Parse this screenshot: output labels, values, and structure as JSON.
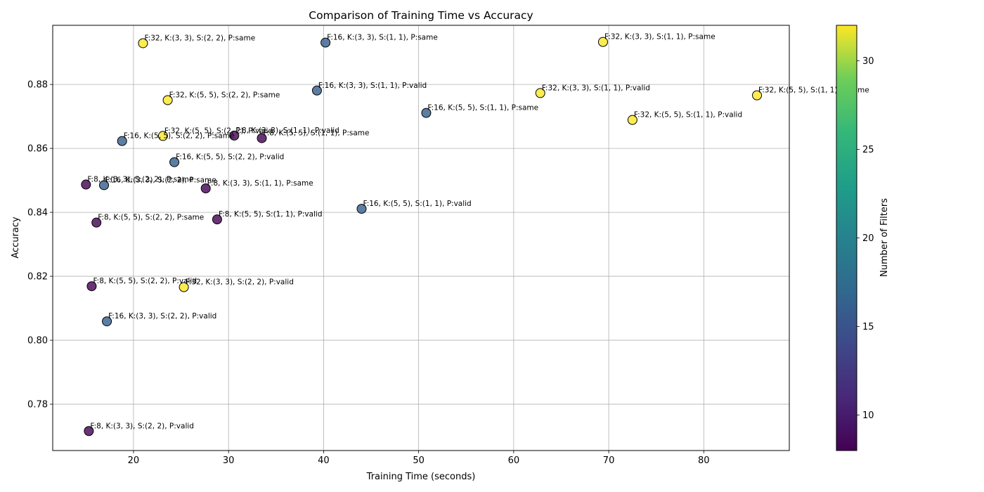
{
  "chart_data": {
    "type": "scatter",
    "title": "Comparison of Training Time vs Accuracy",
    "xlabel": "Training Time (seconds)",
    "ylabel": "Accuracy",
    "xlim": [
      11.5,
      89.0
    ],
    "ylim": [
      0.7655,
      0.8985
    ],
    "xticks": [
      20,
      30,
      40,
      50,
      60,
      70,
      80
    ],
    "yticks": [
      0.78,
      0.8,
      0.82,
      0.84,
      0.86,
      0.88
    ],
    "ytick_labels": [
      "0.78",
      "0.80",
      "0.82",
      "0.84",
      "0.86",
      "0.88"
    ],
    "grid": true,
    "colormap": "viridis",
    "colorbar": {
      "label": "Number of Filters",
      "range": [
        8,
        32
      ],
      "ticks": [
        10,
        15,
        20,
        25,
        30
      ]
    },
    "points": [
      {
        "x": 21.0,
        "y": 0.8929,
        "filters": 32,
        "label": "F:32, K:(3, 3), S:(2, 2), P:same"
      },
      {
        "x": 40.2,
        "y": 0.8931,
        "filters": 16,
        "label": "F:16, K:(3, 3), S:(1, 1), P:same"
      },
      {
        "x": 69.4,
        "y": 0.8933,
        "filters": 32,
        "label": "F:32, K:(3, 3), S:(1, 1), P:same"
      },
      {
        "x": 39.3,
        "y": 0.8781,
        "filters": 16,
        "label": "F:16, K:(3, 3), S:(1, 1), P:valid"
      },
      {
        "x": 62.8,
        "y": 0.8773,
        "filters": 32,
        "label": "F:32, K:(3, 3), S:(1, 1), P:valid"
      },
      {
        "x": 85.6,
        "y": 0.8766,
        "filters": 32,
        "label": "F:32, K:(5, 5), S:(1, 1), P:same"
      },
      {
        "x": 23.6,
        "y": 0.8751,
        "filters": 32,
        "label": "F:32, K:(5, 5), S:(2, 2), P:same"
      },
      {
        "x": 50.8,
        "y": 0.8711,
        "filters": 16,
        "label": "F:16, K:(5, 5), S:(1, 1), P:same"
      },
      {
        "x": 72.5,
        "y": 0.8689,
        "filters": 32,
        "label": "F:32, K:(5, 5), S:(1, 1), P:valid"
      },
      {
        "x": 23.1,
        "y": 0.8639,
        "filters": 32,
        "label": "F:32, K:(5, 5), S:(2, 2), P:valid"
      },
      {
        "x": 30.6,
        "y": 0.864,
        "filters": 8,
        "label": "F:8, K:(3, 3), S:(1, 1), P:valid"
      },
      {
        "x": 33.5,
        "y": 0.8632,
        "filters": 8,
        "label": "F:8, K:(5, 5), S:(1, 1), P:same"
      },
      {
        "x": 18.8,
        "y": 0.8623,
        "filters": 16,
        "label": "F:16, K:(5, 5), S:(2, 2), P:same"
      },
      {
        "x": 24.3,
        "y": 0.8557,
        "filters": 16,
        "label": "F:16, K:(5, 5), S:(2, 2), P:valid"
      },
      {
        "x": 15.0,
        "y": 0.8487,
        "filters": 8,
        "label": "F:8, K:(3, 3), S:(2, 2), P:same"
      },
      {
        "x": 16.9,
        "y": 0.8485,
        "filters": 16,
        "label": "F:16, K:(3, 3), S:(2, 2), P:same"
      },
      {
        "x": 27.6,
        "y": 0.8475,
        "filters": 8,
        "label": "F:8, K:(3, 3), S:(1, 1), P:same"
      },
      {
        "x": 44.0,
        "y": 0.8411,
        "filters": 16,
        "label": "F:16, K:(5, 5), S:(1, 1), P:valid"
      },
      {
        "x": 28.8,
        "y": 0.8378,
        "filters": 8,
        "label": "F:8, K:(5, 5), S:(1, 1), P:valid"
      },
      {
        "x": 16.1,
        "y": 0.8368,
        "filters": 8,
        "label": "F:8, K:(5, 5), S:(2, 2), P:same"
      },
      {
        "x": 15.6,
        "y": 0.8169,
        "filters": 8,
        "label": "F:8, K:(5, 5), S:(2, 2), P:valid"
      },
      {
        "x": 25.3,
        "y": 0.8166,
        "filters": 32,
        "label": "F:32, K:(3, 3), S:(2, 2), P:valid"
      },
      {
        "x": 17.2,
        "y": 0.8059,
        "filters": 16,
        "label": "F:16, K:(3, 3), S:(2, 2), P:valid"
      },
      {
        "x": 15.3,
        "y": 0.7716,
        "filters": 8,
        "label": "F:8, K:(3, 3), S:(2, 2), P:valid"
      }
    ]
  }
}
